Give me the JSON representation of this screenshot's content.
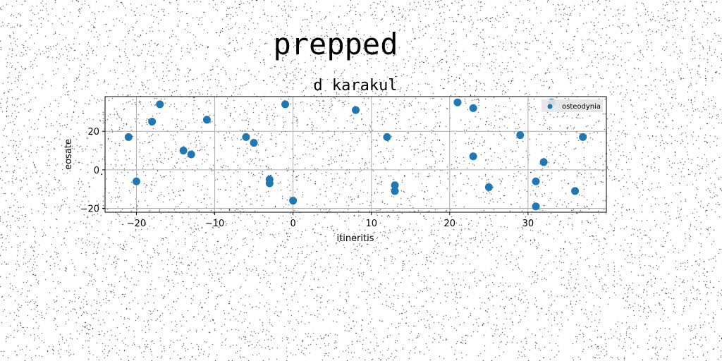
{
  "page": {
    "suptitle": "prepped"
  },
  "colors": {
    "marker": "#1f77b4",
    "grid": "#b0b0b0",
    "axis": "#000000",
    "legend_bg": "#e6e6e6"
  },
  "chart_data": {
    "type": "scatter",
    "title": "d karakul",
    "xlabel": "itineritis",
    "ylabel": "eosate",
    "xlim": [
      -24,
      40
    ],
    "ylim": [
      -22,
      38
    ],
    "xticks": [
      -20,
      -10,
      0,
      10,
      20,
      30
    ],
    "yticks": [
      -20,
      0,
      20
    ],
    "grid": true,
    "legend": {
      "position": "top-right",
      "entries": [
        "osteodynia"
      ]
    },
    "series": [
      {
        "name": "osteodynia",
        "color": "#1f77b4",
        "points": [
          {
            "x": -21,
            "y": 17
          },
          {
            "x": -20,
            "y": -6
          },
          {
            "x": -18,
            "y": 25
          },
          {
            "x": -17,
            "y": 34
          },
          {
            "x": -14,
            "y": 10
          },
          {
            "x": -13,
            "y": 8
          },
          {
            "x": -11,
            "y": 26
          },
          {
            "x": -6,
            "y": 17
          },
          {
            "x": -5,
            "y": 14
          },
          {
            "x": -3,
            "y": -5
          },
          {
            "x": -3,
            "y": -7
          },
          {
            "x": -1,
            "y": 34
          },
          {
            "x": 0,
            "y": -16
          },
          {
            "x": 8,
            "y": 31
          },
          {
            "x": 12,
            "y": 17
          },
          {
            "x": 13,
            "y": -8
          },
          {
            "x": 13,
            "y": -11
          },
          {
            "x": 21,
            "y": 35
          },
          {
            "x": 23,
            "y": 32
          },
          {
            "x": 23,
            "y": 7
          },
          {
            "x": 25,
            "y": -9
          },
          {
            "x": 29,
            "y": 18
          },
          {
            "x": 31,
            "y": -6
          },
          {
            "x": 31,
            "y": -19
          },
          {
            "x": 32,
            "y": 4
          },
          {
            "x": 33,
            "y": 35
          },
          {
            "x": 36,
            "y": -11
          },
          {
            "x": 37,
            "y": 17
          }
        ]
      }
    ]
  }
}
